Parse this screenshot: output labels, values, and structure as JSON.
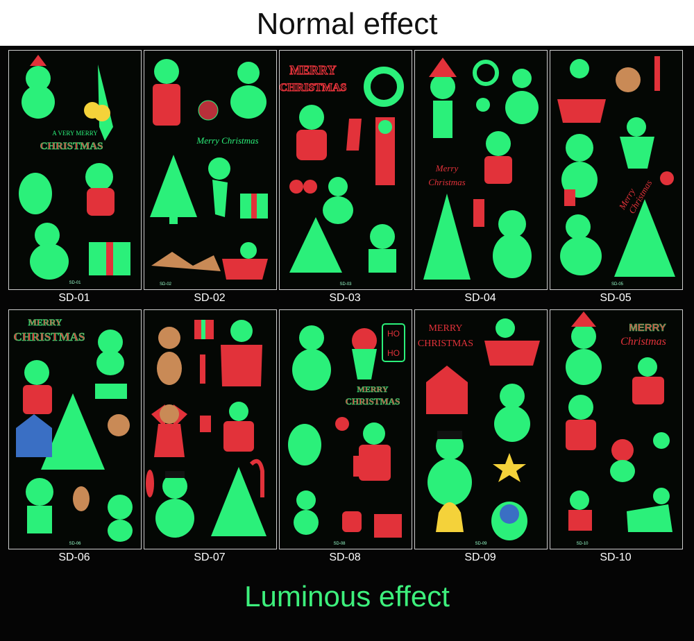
{
  "header": {
    "title": "Normal effect"
  },
  "footer": {
    "title": "Luminous effect"
  },
  "colors": {
    "glow": "#2bf07a",
    "red": "#e2323a",
    "background": "#050505"
  },
  "sheets": [
    {
      "code": "SD-01",
      "small": "SD-01",
      "text": [
        "A VERY MERRY",
        "CHRISTMAS"
      ]
    },
    {
      "code": "SD-02",
      "small": "SD-02",
      "text": [
        "Merry Christmas"
      ]
    },
    {
      "code": "SD-03",
      "small": "SD-03",
      "text": [
        "MERRY",
        "CHRISTMAS"
      ]
    },
    {
      "code": "SD-04",
      "small": "SD-04",
      "text": [
        "Merry",
        "Christmas"
      ]
    },
    {
      "code": "SD-05",
      "small": "SD-05",
      "text": [
        "Merry",
        "Christmas"
      ]
    },
    {
      "code": "SD-06",
      "small": "SD-06",
      "text": [
        "MERRY",
        "CHRISTMAS"
      ]
    },
    {
      "code": "SD-07",
      "small": "SD-07",
      "text": []
    },
    {
      "code": "SD-08",
      "small": "SD-08",
      "text": [
        "HO",
        "HO",
        "MERRY",
        "CHRISTMAS"
      ]
    },
    {
      "code": "SD-09",
      "small": "SD-09",
      "text": [
        "MERRY",
        "CHRISTMAS"
      ]
    },
    {
      "code": "SD-10",
      "small": "SD-10",
      "text": [
        "MERRY",
        "Christmas"
      ]
    }
  ]
}
